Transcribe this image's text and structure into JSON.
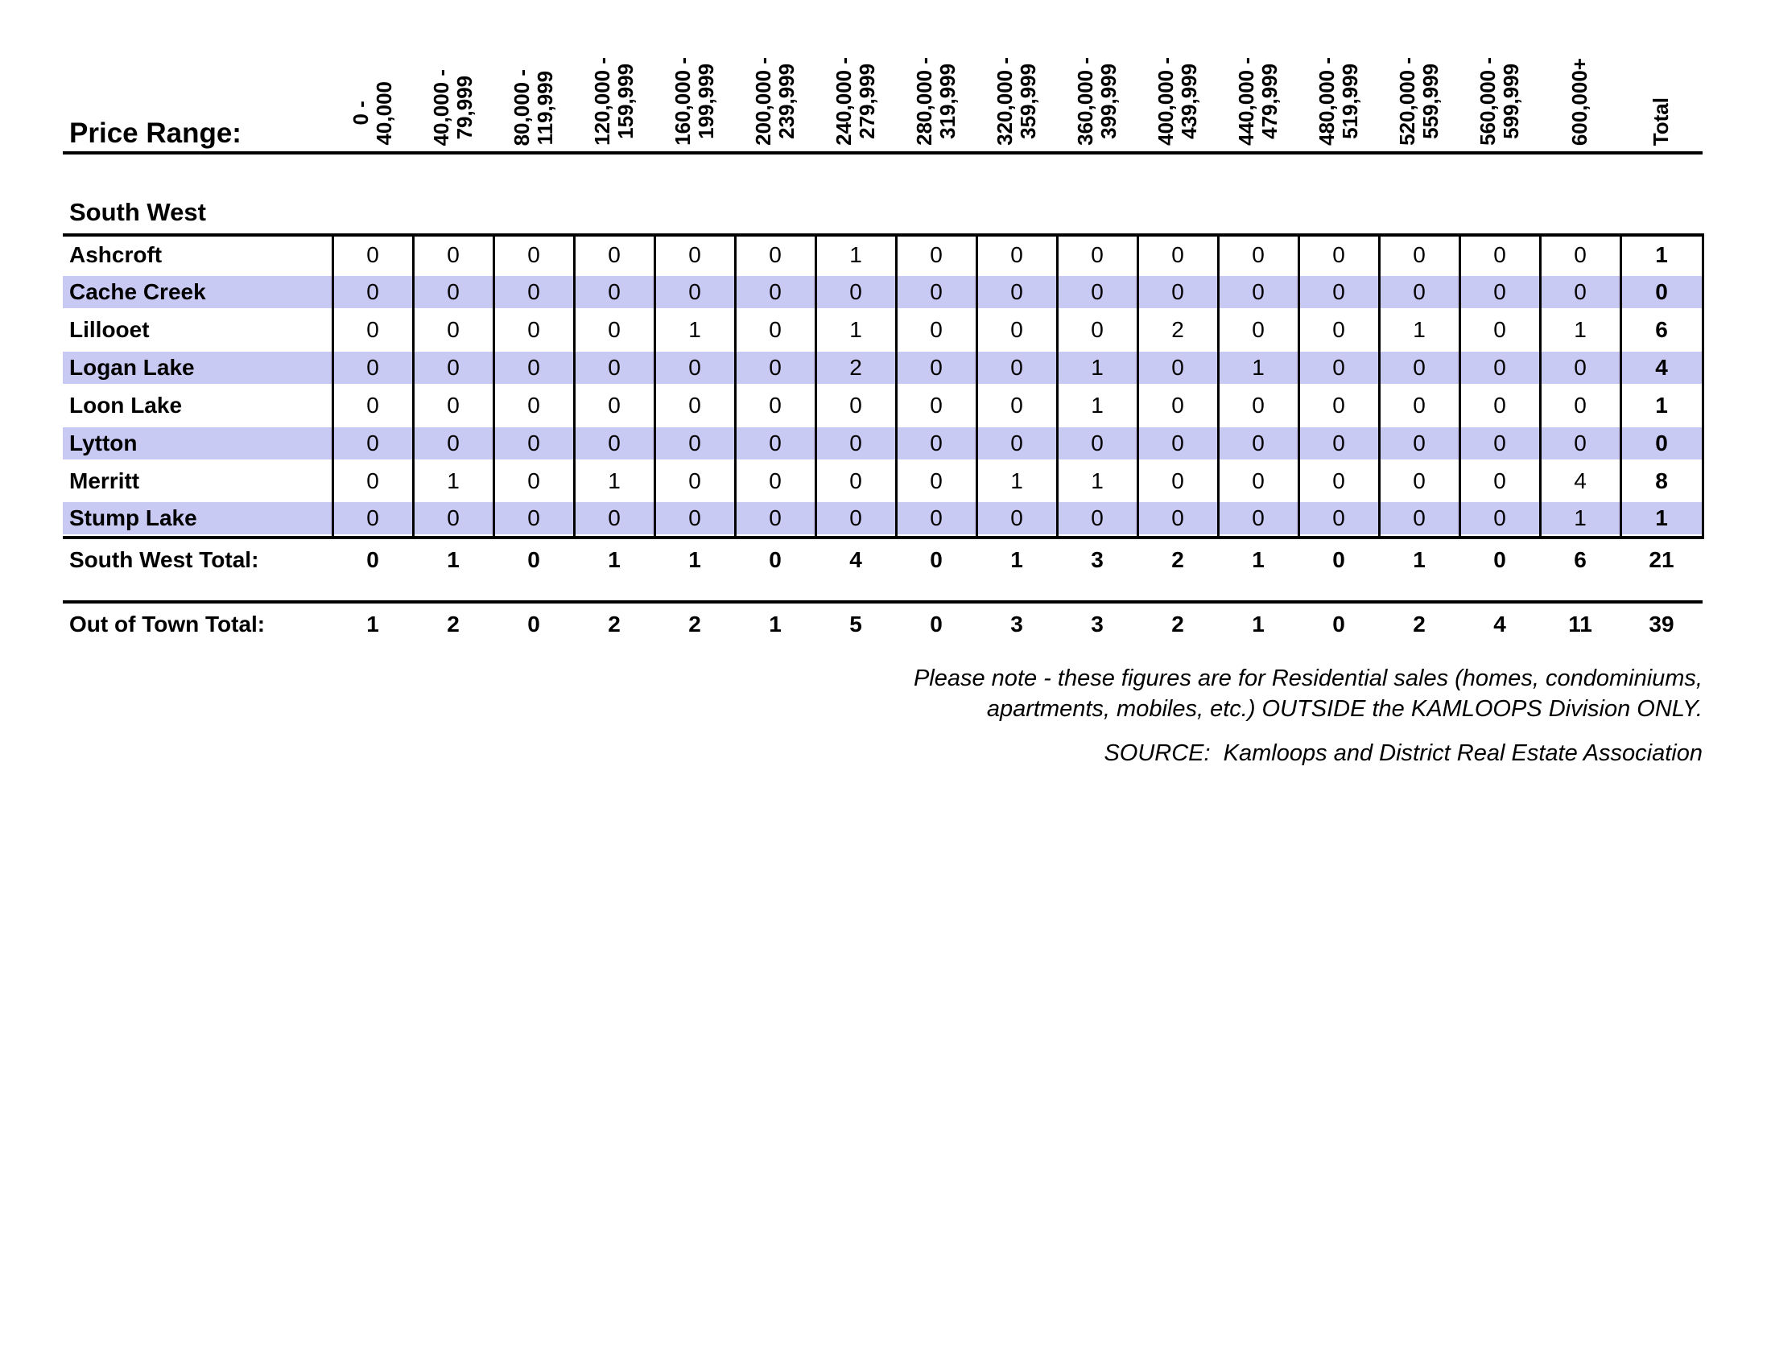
{
  "header": {
    "price_range_label": "Price Range:",
    "columns": [
      "0 -\n40,000",
      "40,000 -\n79,999",
      "80,000 -\n119,999",
      "120,000 -\n159,999",
      "160,000 -\n199,999",
      "200,000 -\n239,999",
      "240,000 -\n279,999",
      "280,000 -\n319,999",
      "320,000 -\n359,999",
      "360,000 -\n399,999",
      "400,000 -\n439,999",
      "440,000 -\n479,999",
      "480,000 -\n519,999",
      "520,000 -\n559,999",
      "560,000 -\n599,999",
      "600,000+"
    ],
    "total_label": "Total"
  },
  "section": {
    "title": "South West"
  },
  "rows": [
    {
      "name": "Ashcroft",
      "values": [
        0,
        0,
        0,
        0,
        0,
        0,
        1,
        0,
        0,
        0,
        0,
        0,
        0,
        0,
        0,
        0
      ],
      "total": 1
    },
    {
      "name": "Cache Creek",
      "values": [
        0,
        0,
        0,
        0,
        0,
        0,
        0,
        0,
        0,
        0,
        0,
        0,
        0,
        0,
        0,
        0
      ],
      "total": 0
    },
    {
      "name": "Lillooet",
      "values": [
        0,
        0,
        0,
        0,
        1,
        0,
        1,
        0,
        0,
        0,
        2,
        0,
        0,
        1,
        0,
        1
      ],
      "total": 6
    },
    {
      "name": "Logan Lake",
      "values": [
        0,
        0,
        0,
        0,
        0,
        0,
        2,
        0,
        0,
        1,
        0,
        1,
        0,
        0,
        0,
        0
      ],
      "total": 4
    },
    {
      "name": "Loon Lake",
      "values": [
        0,
        0,
        0,
        0,
        0,
        0,
        0,
        0,
        0,
        1,
        0,
        0,
        0,
        0,
        0,
        0
      ],
      "total": 1
    },
    {
      "name": "Lytton",
      "values": [
        0,
        0,
        0,
        0,
        0,
        0,
        0,
        0,
        0,
        0,
        0,
        0,
        0,
        0,
        0,
        0
      ],
      "total": 0
    },
    {
      "name": "Merritt",
      "values": [
        0,
        1,
        0,
        1,
        0,
        0,
        0,
        0,
        1,
        1,
        0,
        0,
        0,
        0,
        0,
        4
      ],
      "total": 8
    },
    {
      "name": "Stump Lake",
      "values": [
        0,
        0,
        0,
        0,
        0,
        0,
        0,
        0,
        0,
        0,
        0,
        0,
        0,
        0,
        0,
        1
      ],
      "total": 1
    }
  ],
  "totals": [
    {
      "name": "South West Total:",
      "values": [
        0,
        1,
        0,
        1,
        1,
        0,
        4,
        0,
        1,
        3,
        2,
        1,
        0,
        1,
        0,
        6
      ],
      "total": 21
    },
    {
      "name": "Out of Town Total:",
      "values": [
        1,
        2,
        0,
        2,
        2,
        1,
        5,
        0,
        3,
        3,
        2,
        1,
        0,
        2,
        4,
        11
      ],
      "total": 39
    }
  ],
  "footnote": {
    "note": "Please note - these figures are for Residential sales (homes, condominiums,\napartments, mobiles, etc.) OUTSIDE the KAMLOOPS Division ONLY.",
    "source": "SOURCE:  Kamloops and District Real Estate Association"
  },
  "colors": {
    "band": "#c9caf4",
    "line": "#000000"
  }
}
